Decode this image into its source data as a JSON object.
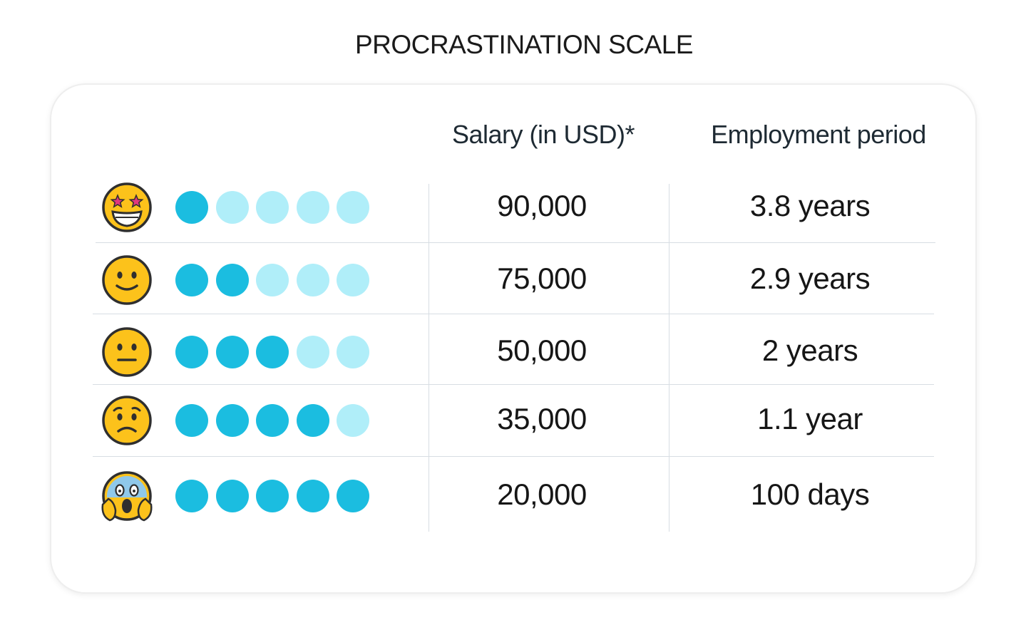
{
  "title": "PROCRASTINATION SCALE",
  "colors": {
    "dot_filled": "#1bbde0",
    "dot_empty": "#b0eef9",
    "divider": "#d7dde3",
    "emoji_face": "#fcc21b",
    "emoji_outline": "#2f2f2f"
  },
  "chart_data": {
    "type": "table",
    "title": "PROCRASTINATION SCALE",
    "columns": [
      "Salary (in USD)*",
      "Employment period"
    ],
    "scale_max": 5,
    "rows": [
      {
        "emoji": "star-struck-face-icon",
        "level": 1,
        "salary": "90,000",
        "period": "3.8 years"
      },
      {
        "emoji": "slightly-smiling-face-icon",
        "level": 2,
        "salary": "75,000",
        "period": "2.9 years"
      },
      {
        "emoji": "neutral-face-icon",
        "level": 3,
        "salary": "50,000",
        "period": "2 years"
      },
      {
        "emoji": "worried-face-icon",
        "level": 4,
        "salary": "35,000",
        "period": "1.1 year"
      },
      {
        "emoji": "screaming-in-fear-face-icon",
        "level": 5,
        "salary": "20,000",
        "period": "100 days"
      }
    ]
  }
}
